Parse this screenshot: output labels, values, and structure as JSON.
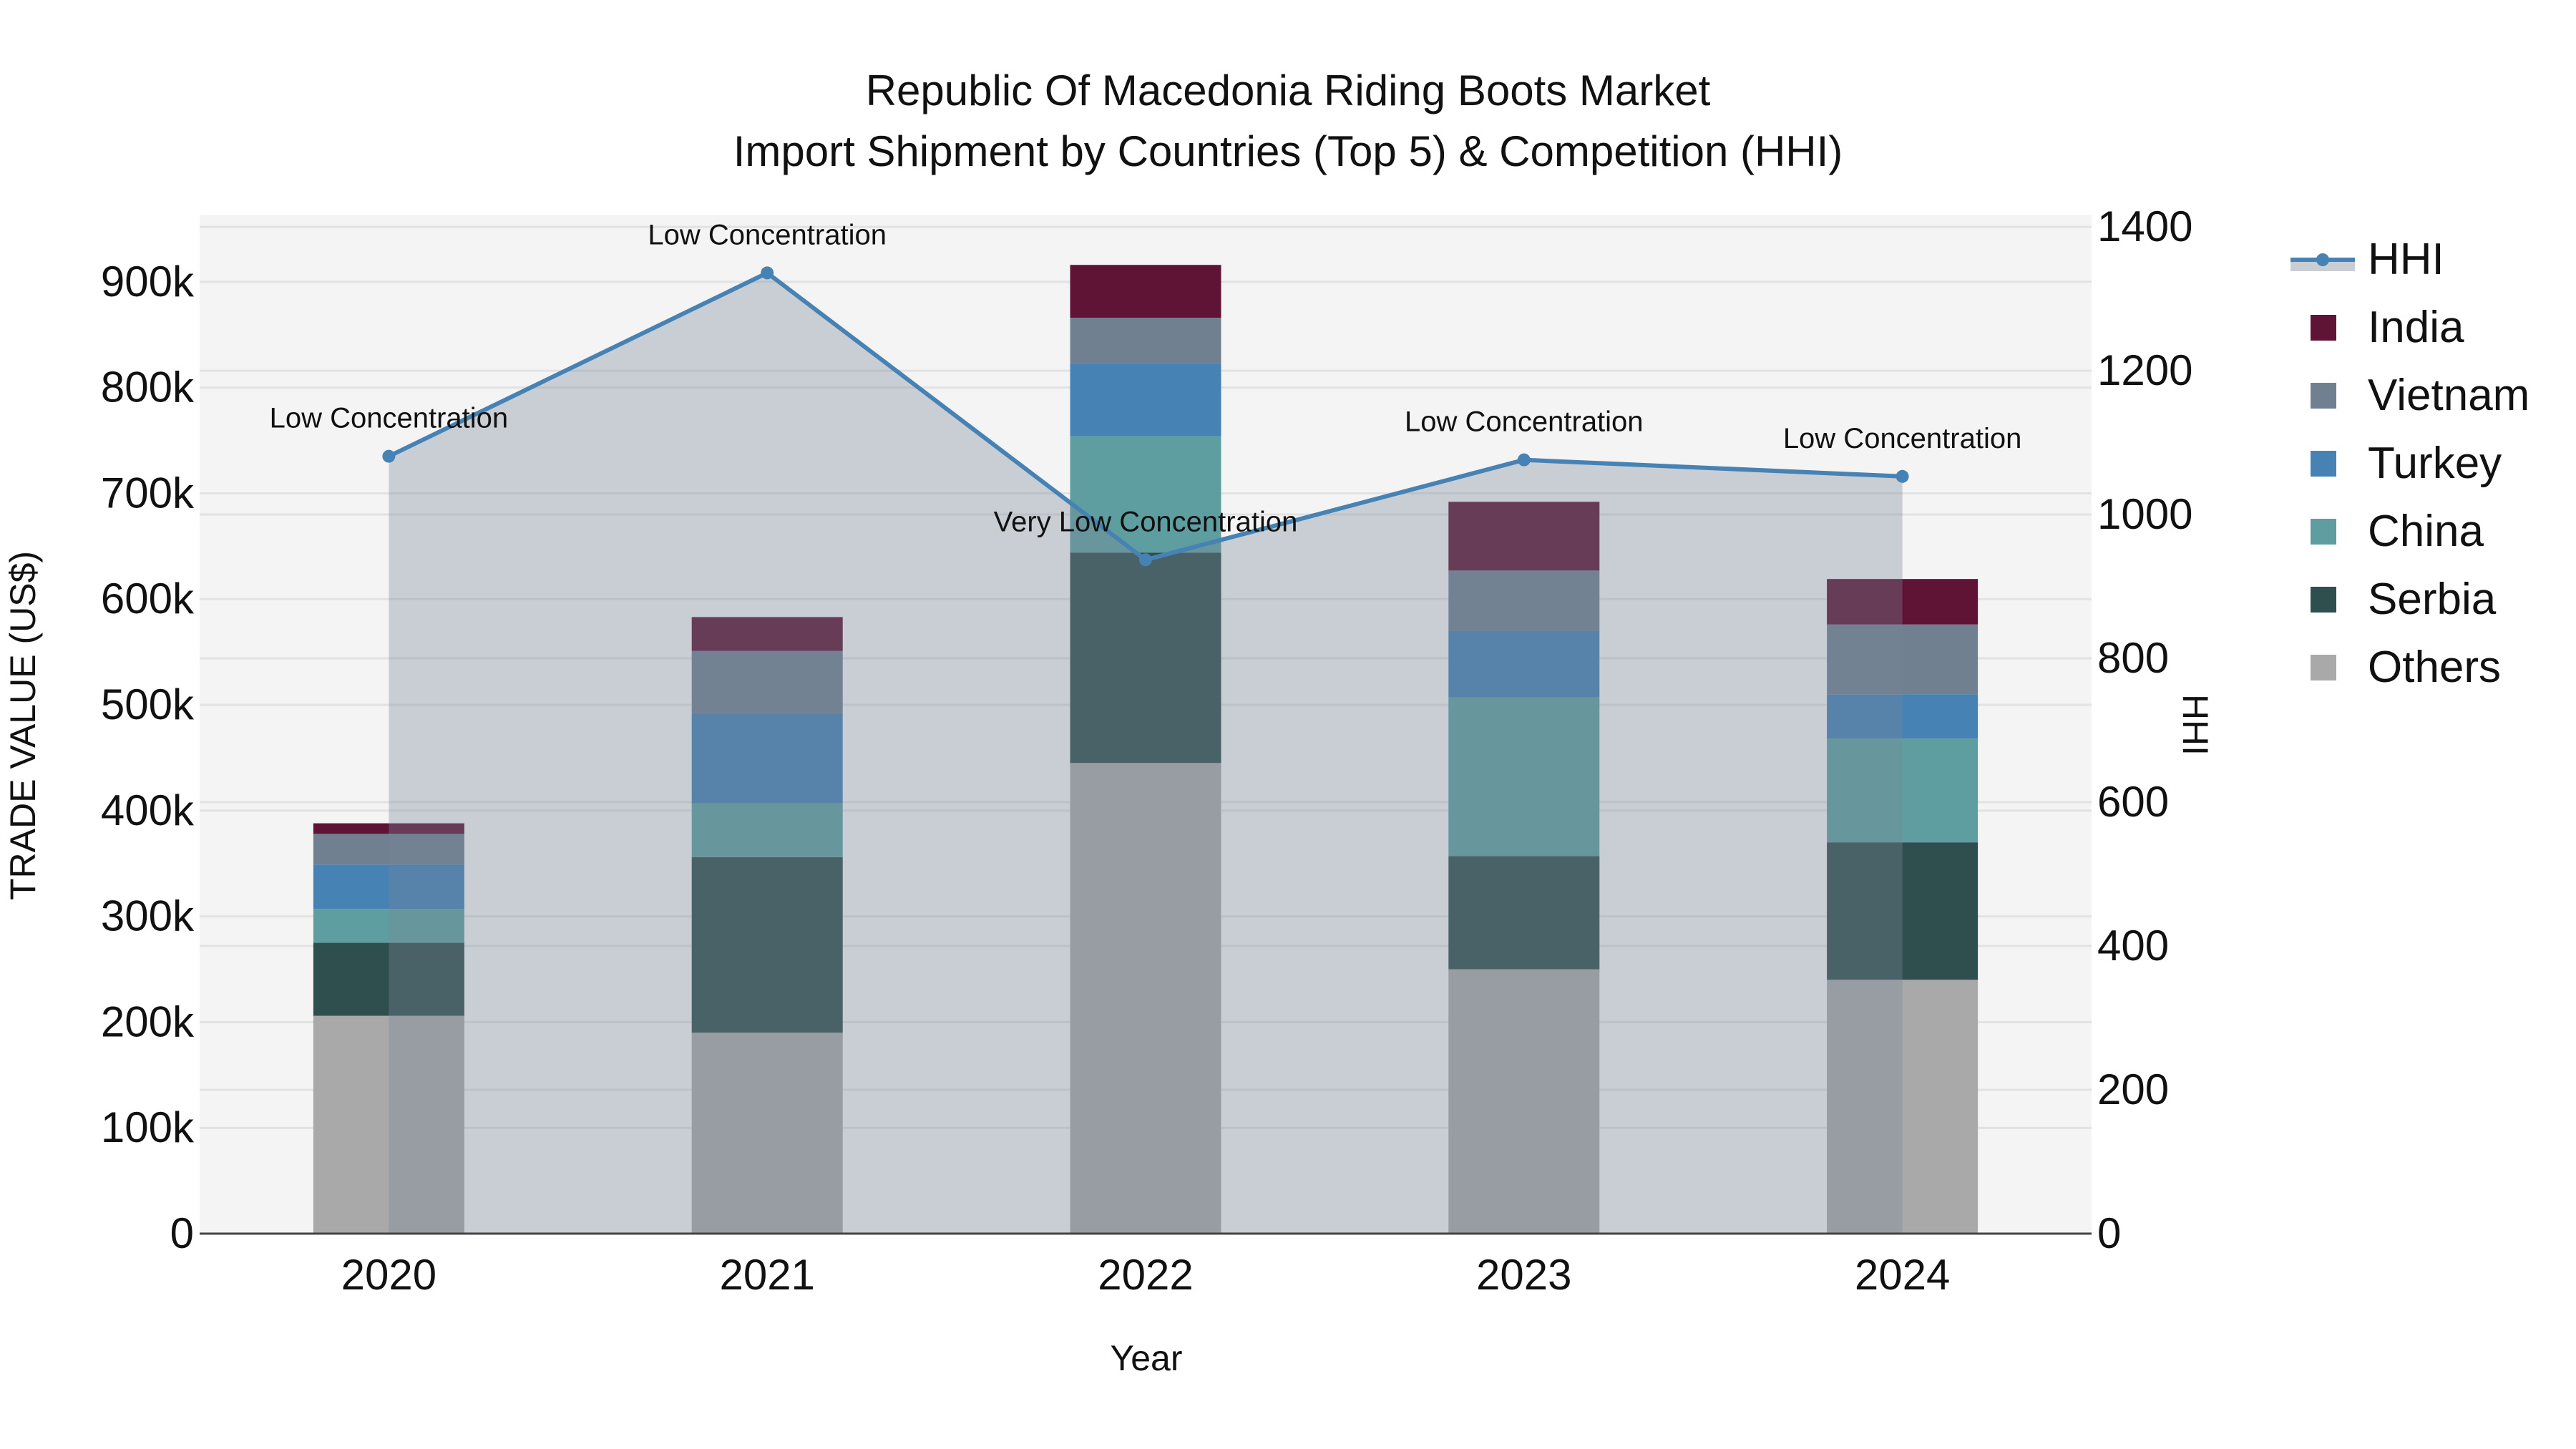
{
  "title": {
    "line1": "Republic Of Macedonia Riding Boots Market",
    "line2": "Import Shipment by Countries (Top 5) & Competition (HHI)"
  },
  "axes": {
    "x_title": "Year",
    "y_left_title": "TRADE VALUE (US$)",
    "y_right_title": "HHI"
  },
  "colors": {
    "India": "#5f1435",
    "Vietnam": "#708090",
    "Turkey": "#4682b4",
    "China": "#5f9ea0",
    "Serbia": "#2f4f4f",
    "Others": "#a9a9a9",
    "HHI_line": "#4682b4",
    "HHI_area": "rgba(119,136,153,0.35)",
    "plot_bg": "#f4f4f4",
    "grid": "#e2e2e2"
  },
  "legend": [
    {
      "label": "HHI",
      "type": "line"
    },
    {
      "label": "India",
      "type": "bar"
    },
    {
      "label": "Vietnam",
      "type": "bar"
    },
    {
      "label": "Turkey",
      "type": "bar"
    },
    {
      "label": "China",
      "type": "bar"
    },
    {
      "label": "Serbia",
      "type": "bar"
    },
    {
      "label": "Others",
      "type": "bar"
    }
  ],
  "chart_data": {
    "type": "bar",
    "stacked": true,
    "title": "Republic Of Macedonia Riding Boots Market\nImport Shipment by Countries (Top 5) & Competition (HHI)",
    "xlabel": "Year",
    "ylabel": "TRADE VALUE (US$)",
    "y2label": "HHI",
    "categories": [
      "2020",
      "2021",
      "2022",
      "2023",
      "2024"
    ],
    "series": [
      {
        "name": "Others",
        "values": [
          206000,
          190000,
          445000,
          250000,
          240000
        ]
      },
      {
        "name": "Serbia",
        "values": [
          69000,
          166000,
          199000,
          107000,
          130000
        ]
      },
      {
        "name": "China",
        "values": [
          32000,
          51000,
          110000,
          150000,
          98000
        ]
      },
      {
        "name": "Turkey",
        "values": [
          42000,
          85000,
          69000,
          63000,
          42000
        ]
      },
      {
        "name": "Vietnam",
        "values": [
          29000,
          59000,
          43000,
          57000,
          66000
        ]
      },
      {
        "name": "India",
        "values": [
          10000,
          32000,
          50000,
          65000,
          43000
        ]
      }
    ],
    "line_series": {
      "name": "HHI",
      "axis": "right",
      "type": "line+area",
      "values": [
        1081,
        1336,
        937,
        1076,
        1053
      ],
      "annotations": [
        "Low Concentration",
        "Low Concentration",
        "Very Low Concentration",
        "Low Concentration",
        "Low Concentration"
      ]
    },
    "ylim": [
      0,
      963500
    ],
    "y2lim": [
      0,
      1417
    ],
    "y_ticks": [
      0,
      100000,
      200000,
      300000,
      400000,
      500000,
      600000,
      700000,
      800000,
      900000
    ],
    "y_tick_labels": [
      "0",
      "100k",
      "200k",
      "300k",
      "400k",
      "500k",
      "600k",
      "700k",
      "800k",
      "900k"
    ],
    "y2_ticks": [
      0,
      200,
      400,
      600,
      800,
      1000,
      1200,
      1400
    ],
    "y2_tick_labels": [
      "0",
      "200",
      "400",
      "600",
      "800",
      "1000",
      "1200",
      "1400"
    ],
    "grid": true,
    "legend_position": "right"
  }
}
